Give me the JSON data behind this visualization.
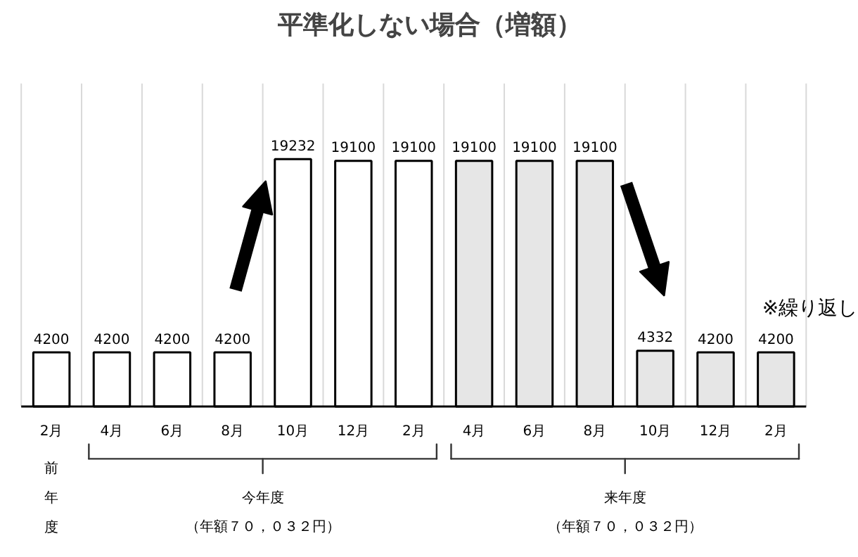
{
  "chart_data": {
    "type": "bar",
    "title": "平準化しない場合（増額）",
    "categories": [
      "2月",
      "4月",
      "6月",
      "8月",
      "10月",
      "12月",
      "2月",
      "4月",
      "6月",
      "8月",
      "10月",
      "12月",
      "2月"
    ],
    "values": [
      4200,
      4200,
      4200,
      4200,
      19232,
      19100,
      19100,
      19100,
      19100,
      19100,
      4332,
      4200,
      4200
    ],
    "colors": [
      "#ffffff",
      "#ffffff",
      "#ffffff",
      "#ffffff",
      "#ffffff",
      "#ffffff",
      "#ffffff",
      "#e6e6e6",
      "#e6e6e6",
      "#e6e6e6",
      "#e6e6e6",
      "#e6e6e6",
      "#e6e6e6"
    ],
    "data_labels": true,
    "grid": "x",
    "annotations": [
      "※繰り返し",
      "前年度",
      "今年度",
      "（年額７０，０３２円）",
      "来年度",
      "（年額７０，０３２円）"
    ]
  }
}
